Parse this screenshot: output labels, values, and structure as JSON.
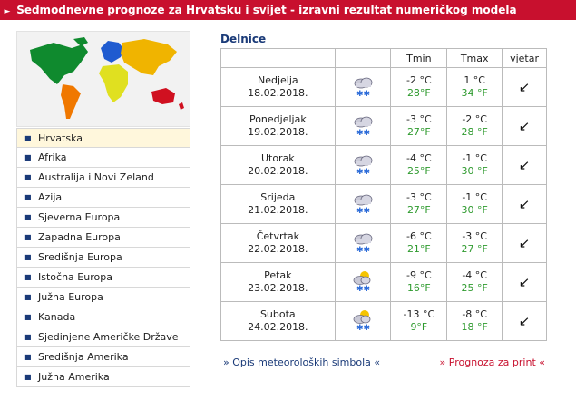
{
  "header": {
    "arrow_icon": "triangle-right",
    "title": "Sedmodnevne prognoze za Hrvatsku i svijet - izravni rezultat numeričkog modela"
  },
  "map": {
    "icon": "world-map",
    "colors": [
      "#0f8a2e",
      "#1f5bd0",
      "#f0b400",
      "#e0e020",
      "#f07800",
      "#d01020"
    ]
  },
  "sidebar": {
    "items": [
      "Hrvatska",
      "Afrika",
      "Australija i Novi Zeland",
      "Azija",
      "Sjeverna Europa",
      "Zapadna Europa",
      "Središnja Europa",
      "Istočna Europa",
      "Južna Europa",
      "Kanada",
      "Sjedinjene Američke Države",
      "Središnja Amerika",
      "Južna Amerika"
    ]
  },
  "forecast": {
    "city": "Delnice",
    "headers": {
      "tmin": "Tmin",
      "tmax": "Tmax",
      "wind": "vjetar"
    },
    "rows": [
      {
        "day": "Nedjelja",
        "date": "18.02.2018.",
        "icon": "cloud-snow-icon",
        "tmin_c": "-2 °C",
        "tmin_f": "28°F",
        "tmax_c": "1 °C",
        "tmax_f": "34 °F",
        "wind": "↙"
      },
      {
        "day": "Ponedjeljak",
        "date": "19.02.2018.",
        "icon": "cloud-snow-icon",
        "tmin_c": "-3 °C",
        "tmin_f": "27°F",
        "tmax_c": "-2 °C",
        "tmax_f": "28 °F",
        "wind": "↙"
      },
      {
        "day": "Utorak",
        "date": "20.02.2018.",
        "icon": "cloud-snow-icon",
        "tmin_c": "-4 °C",
        "tmin_f": "25°F",
        "tmax_c": "-1 °C",
        "tmax_f": "30 °F",
        "wind": "↙"
      },
      {
        "day": "Srijeda",
        "date": "21.02.2018.",
        "icon": "cloud-snow-icon",
        "tmin_c": "-3 °C",
        "tmin_f": "27°F",
        "tmax_c": "-1 °C",
        "tmax_f": "30 °F",
        "wind": "↙"
      },
      {
        "day": "Četvrtak",
        "date": "22.02.2018.",
        "icon": "cloud-snow-icon",
        "tmin_c": "-6 °C",
        "tmin_f": "21°F",
        "tmax_c": "-3 °C",
        "tmax_f": "27 °F",
        "wind": "↙"
      },
      {
        "day": "Petak",
        "date": "23.02.2018.",
        "icon": "sun-cloud-snow-icon",
        "tmin_c": "-9 °C",
        "tmin_f": "16°F",
        "tmax_c": "-4 °C",
        "tmax_f": "25 °F",
        "wind": "↙"
      },
      {
        "day": "Subota",
        "date": "24.02.2018.",
        "icon": "sun-cloud-snow-icon",
        "tmin_c": "-13 °C",
        "tmin_f": "9°F",
        "tmax_c": "-8 °C",
        "tmax_f": "18 °F",
        "wind": "↙"
      }
    ]
  },
  "footer": {
    "symbols_link": "» Opis meteoroloških simbola «",
    "print_link": "» Prognoza za print «"
  }
}
